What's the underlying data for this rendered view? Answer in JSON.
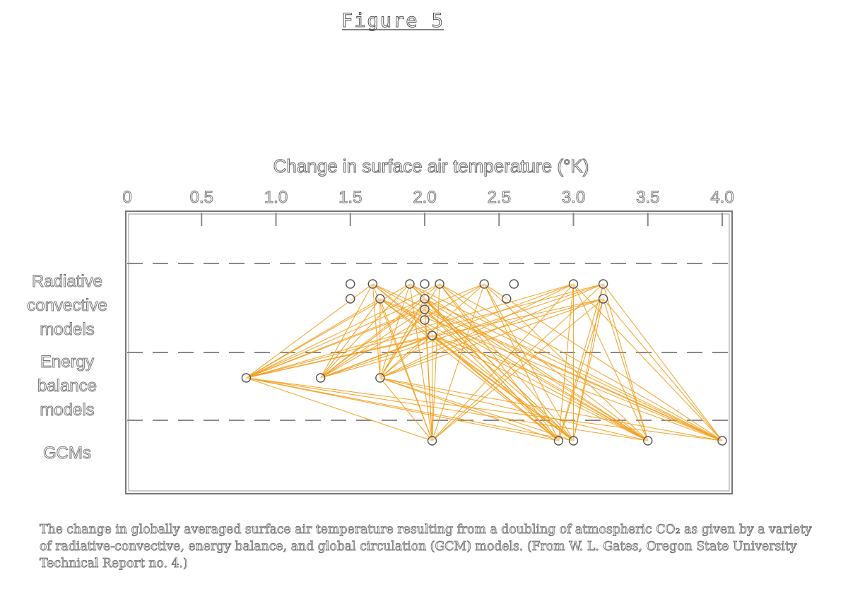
{
  "figure_title": "Figure 5",
  "caption": "The change in globally averaged surface air temperature resulting from a doubling of atmospheric CO₂ as given by a variety of radiative-convective, energy balance, and global circulation (GCM) models. (From W. L. Gates, Oregon State University Technical Report no. 4.)",
  "chart_data": {
    "type": "scatter",
    "title": "Change in surface air temperature (°K)",
    "xlabel": "Change in surface air temperature (°K)",
    "xlim": [
      0,
      4.0
    ],
    "x_ticks": [
      "0",
      "0.5",
      "1.0",
      "1.5",
      "2.0",
      "2.5",
      "3.0",
      "3.5",
      "4.0"
    ],
    "x_tick_values": [
      0,
      0.5,
      1.0,
      1.5,
      2.0,
      2.5,
      3.0,
      3.5,
      4.0
    ],
    "categories": [
      "Radiative convective models",
      "Energy balance models",
      "GCMs"
    ],
    "category_labels": [
      [
        "Radiative",
        "convective",
        "models"
      ],
      [
        "Energy",
        "balance",
        "models"
      ],
      [
        "GCMs"
      ]
    ],
    "series": [
      {
        "category": "Radiative convective models",
        "points": [
          {
            "x": 1.5,
            "row": 0
          },
          {
            "x": 1.65,
            "row": 0
          },
          {
            "x": 1.9,
            "row": 0
          },
          {
            "x": 2.0,
            "row": 0
          },
          {
            "x": 2.1,
            "row": 0
          },
          {
            "x": 2.4,
            "row": 0
          },
          {
            "x": 2.6,
            "row": 0
          },
          {
            "x": 3.0,
            "row": 0
          },
          {
            "x": 3.2,
            "row": 0
          },
          {
            "x": 1.5,
            "row": 1
          },
          {
            "x": 1.7,
            "row": 1
          },
          {
            "x": 2.0,
            "row": 1
          },
          {
            "x": 2.55,
            "row": 1
          },
          {
            "x": 3.2,
            "row": 1
          },
          {
            "x": 2.0,
            "row": 2
          },
          {
            "x": 2.0,
            "row": 3
          },
          {
            "x": 2.05,
            "row": 4
          }
        ]
      },
      {
        "category": "Energy balance models",
        "points": [
          {
            "x": 0.8,
            "row": 0
          },
          {
            "x": 1.3,
            "row": 0
          },
          {
            "x": 1.7,
            "row": 0
          }
        ]
      },
      {
        "category": "GCMs",
        "points": [
          {
            "x": 2.05,
            "row": 0
          },
          {
            "x": 2.9,
            "row": 0
          },
          {
            "x": 3.0,
            "row": 0
          },
          {
            "x": 3.5,
            "row": 0
          },
          {
            "x": 4.0,
            "row": 0
          }
        ]
      }
    ],
    "connector_color": "#f5a020",
    "grid": false,
    "legend": "none"
  }
}
